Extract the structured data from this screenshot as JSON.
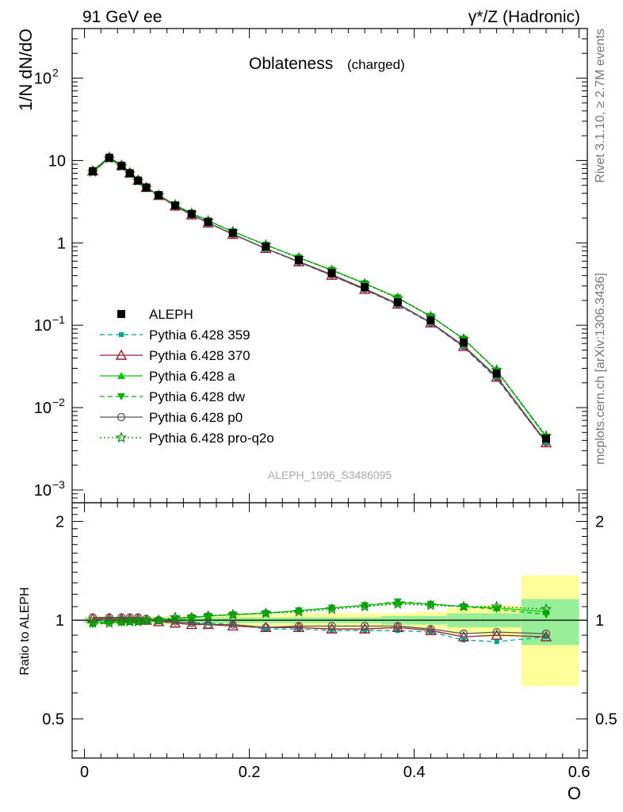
{
  "header": {
    "left": "91 GeV ee",
    "right": "γ*/Z (Hadronic)"
  },
  "side": {
    "rivet": "Rivet 3.1.10, ≥ 2.7M events",
    "mcplots": "mcplots.cern.ch [arXiv:1306.3436]"
  },
  "chart_data": {
    "type": "line",
    "title": "Oblateness",
    "title_suffix": "(charged)",
    "watermark": "ALEPH_1996_S3486095",
    "xlabel": "O",
    "ylabel": "1/N dN/dO",
    "ratio_ylabel": "Ratio to ALEPH",
    "xlim": [
      -0.015,
      0.61
    ],
    "ylim": [
      0.0007,
      400
    ],
    "yscale": "log",
    "ratio_ylim": [
      0.38,
      2.28
    ],
    "ratio_yscale": "log",
    "x_ticks": [
      "0",
      "0.2",
      "0.4",
      "0.6"
    ],
    "y_ticks": [
      "10^-3",
      "10^-2",
      "10^-1",
      "1",
      "10",
      "10^2"
    ],
    "ratio_ticks": [
      "0.5",
      "1",
      "2"
    ],
    "legend_position": "center-left",
    "x": [
      0.01,
      0.03,
      0.045,
      0.055,
      0.065,
      0.075,
      0.09,
      0.11,
      0.13,
      0.15,
      0.18,
      0.22,
      0.26,
      0.3,
      0.34,
      0.38,
      0.42,
      0.46,
      0.5,
      0.56
    ],
    "data": {
      "name": "ALEPH",
      "values": [
        7.4,
        10.8,
        8.6,
        7.0,
        5.7,
        4.7,
        3.8,
        2.85,
        2.25,
        1.8,
        1.32,
        0.9,
        0.62,
        0.43,
        0.29,
        0.19,
        0.115,
        0.062,
        0.026,
        0.0042
      ],
      "band_inner": [
        0.02,
        0.02,
        0.02,
        0.02,
        0.02,
        0.02,
        0.02,
        0.02,
        0.02,
        0.02,
        0.02,
        0.02,
        0.02,
        0.02,
        0.02,
        0.03,
        0.03,
        0.05,
        0.05,
        0.16
      ],
      "band_outer": [
        0.03,
        0.03,
        0.03,
        0.03,
        0.03,
        0.03,
        0.03,
        0.03,
        0.03,
        0.03,
        0.04,
        0.04,
        0.05,
        0.05,
        0.05,
        0.05,
        0.06,
        0.09,
        0.11,
        0.37
      ]
    },
    "series": [
      {
        "name": "Pythia 6.428 359",
        "color": "#00a88f",
        "marker": "square-small",
        "line": "dashed",
        "ratio": [
          0.98,
          1.01,
          1.01,
          1.0,
          1.0,
          1.0,
          0.99,
          0.99,
          0.98,
          0.98,
          0.97,
          0.94,
          0.94,
          0.93,
          0.93,
          0.93,
          0.92,
          0.87,
          0.86,
          0.89
        ]
      },
      {
        "name": "Pythia 6.428 370",
        "color": "#9b1c31",
        "marker": "triangle-open",
        "line": "solid",
        "ratio": [
          1.01,
          1.01,
          1.01,
          1.01,
          1.01,
          1.0,
          0.99,
          0.98,
          0.97,
          0.97,
          0.96,
          0.95,
          0.95,
          0.94,
          0.94,
          0.95,
          0.93,
          0.89,
          0.9,
          0.89
        ]
      },
      {
        "name": "Pythia 6.428 a",
        "color": "#00cc00",
        "marker": "triangle-up",
        "line": "solid",
        "ratio": [
          0.98,
          0.99,
          0.99,
          0.99,
          0.99,
          1.0,
          1.0,
          1.01,
          1.02,
          1.03,
          1.04,
          1.05,
          1.07,
          1.09,
          1.11,
          1.13,
          1.12,
          1.1,
          1.09,
          1.06
        ]
      },
      {
        "name": "Pythia 6.428 dw",
        "color": "#00b400",
        "marker": "triangle-down",
        "line": "dashed",
        "ratio": [
          0.97,
          0.98,
          0.98,
          0.99,
          0.99,
          0.99,
          1.0,
          1.01,
          1.02,
          1.03,
          1.04,
          1.05,
          1.07,
          1.09,
          1.11,
          1.14,
          1.12,
          1.1,
          1.08,
          1.04
        ]
      },
      {
        "name": "Pythia 6.428 p0",
        "color": "#555555",
        "marker": "circle-open",
        "line": "solid",
        "ratio": [
          1.02,
          1.02,
          1.02,
          1.02,
          1.02,
          1.01,
          1.0,
          0.99,
          0.98,
          0.97,
          0.97,
          0.95,
          0.96,
          0.96,
          0.96,
          0.96,
          0.94,
          0.91,
          0.92,
          0.91
        ]
      },
      {
        "name": "Pythia 6.428 pro-q2o",
        "color": "#0a8a0a",
        "marker": "star-open",
        "line": "dotted",
        "ratio": [
          0.98,
          0.98,
          0.99,
          0.99,
          0.99,
          1.0,
          1.0,
          1.02,
          1.02,
          1.03,
          1.04,
          1.05,
          1.06,
          1.08,
          1.1,
          1.12,
          1.11,
          1.1,
          1.1,
          1.08
        ]
      }
    ]
  },
  "colors": {
    "band_inner": "#99ee99",
    "band_outer": "#ffff99",
    "data": "#000000"
  }
}
